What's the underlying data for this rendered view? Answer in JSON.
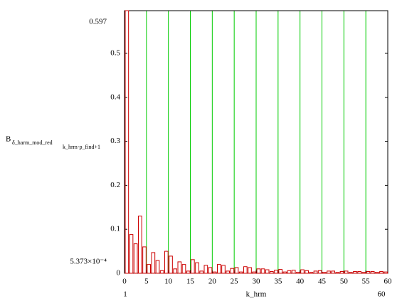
{
  "chart_data": {
    "type": "bar",
    "y_label": {
      "base": "B",
      "sub1": "δ_harm_mod_red",
      "sub2": "k_hrm·p_find+1"
    },
    "x_label": "k_hrm",
    "x_limit_labels": [
      "1",
      "60"
    ],
    "y_limit_labels": [
      "0.597",
      "5.373×10⁻⁴"
    ],
    "x": [
      1,
      2,
      3,
      4,
      5,
      6,
      7,
      8,
      9,
      10,
      11,
      12,
      13,
      14,
      15,
      16,
      17,
      18,
      19,
      20,
      21,
      22,
      23,
      24,
      25,
      26,
      27,
      28,
      29,
      30,
      31,
      32,
      33,
      34,
      35,
      36,
      37,
      38,
      39,
      40,
      41,
      42,
      43,
      44,
      45,
      46,
      47,
      48,
      49,
      50,
      51,
      52,
      53,
      54,
      55,
      56,
      57,
      58,
      59,
      60
    ],
    "values": [
      0.597,
      0.088,
      0.067,
      0.13,
      0.06,
      0.02,
      0.047,
      0.029,
      0.006,
      0.05,
      0.039,
      0.01,
      0.026,
      0.02,
      0.005,
      0.031,
      0.024,
      0.005,
      0.018,
      0.013,
      0.003,
      0.02,
      0.018,
      0.005,
      0.011,
      0.013,
      0.003,
      0.015,
      0.013,
      0.003,
      0.01,
      0.01,
      0.008,
      0.004,
      0.007,
      0.009,
      0.003,
      0.006,
      0.007,
      0.002,
      0.008,
      0.006,
      0.002,
      0.005,
      0.006,
      0.002,
      0.005,
      0.005,
      0.002,
      0.004,
      0.005,
      0.002,
      0.004,
      0.004,
      0.002,
      0.004,
      0.004,
      0.002,
      0.004,
      0.003
    ],
    "color": "#cc0000",
    "grid_color": "#00cc00",
    "xlim": [
      0,
      60
    ],
    "ylim": [
      0,
      0.597
    ],
    "xticks": [
      0,
      5,
      10,
      15,
      20,
      25,
      30,
      35,
      40,
      45,
      50,
      55,
      60
    ],
    "yticks": [
      0,
      0.1,
      0.2,
      0.3,
      0.4,
      0.5
    ],
    "grid": true
  }
}
